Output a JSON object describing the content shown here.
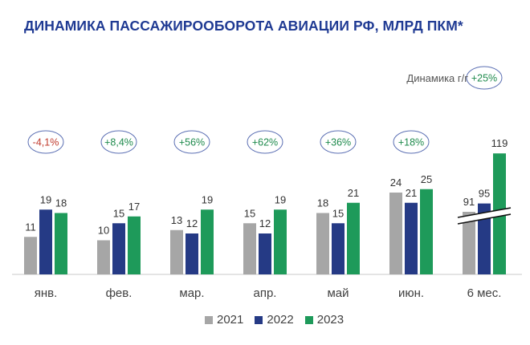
{
  "chart_data": {
    "type": "bar",
    "title": "ДИНАМИКА ПАССАЖИРООБОРОТА АВИАЦИИ РФ, МЛРД ПКМ*",
    "categories": [
      "янв.",
      "фев.",
      "мар.",
      "апр.",
      "май",
      "июн.",
      "6 мес."
    ],
    "series": [
      {
        "name": "2021",
        "color": "#a6a6a6",
        "values": [
          11,
          10,
          13,
          15,
          18,
          24,
          91
        ]
      },
      {
        "name": "2022",
        "color": "#253a85",
        "values": [
          19,
          15,
          12,
          12,
          15,
          21,
          95
        ]
      },
      {
        "name": "2023",
        "color": "#1e9a5a",
        "values": [
          18,
          17,
          19,
          19,
          21,
          25,
          119
        ]
      }
    ],
    "dynamics_label": "Динамика г/г",
    "yoy_changes": [
      "-4,1%",
      "+8,4%",
      "+56%",
      "+62%",
      "+36%",
      "+18%",
      "+25%"
    ],
    "yoy_colors": [
      "#c0392b",
      "#1e8a4c",
      "#1e8a4c",
      "#1e8a4c",
      "#1e8a4c",
      "#1e8a4c",
      "#1e8a4c"
    ],
    "axis_break": "6 мес.",
    "grid": false,
    "legend_position": "bottom"
  }
}
